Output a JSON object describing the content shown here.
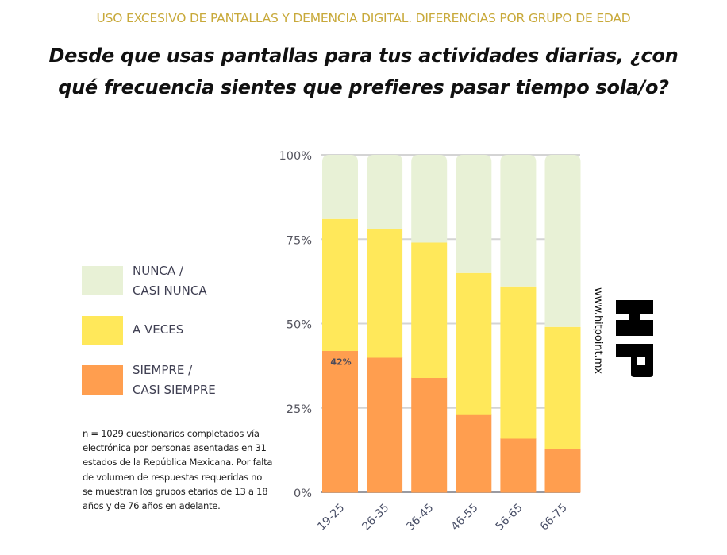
{
  "header": {
    "subtitle": "USO EXCESIVO DE PANTALLAS Y DEMENCIA DIGITAL. DIFERENCIAS POR GRUPO DE EDAD",
    "title_line1": "Desde que usas pantallas para tus actividades diarias, ¿con",
    "title_line2": "qué frecuencia sientes que prefieres pasar tiempo sola/o?"
  },
  "legend": {
    "items": [
      {
        "label": "NUNCA /\nCASI NUNCA",
        "color": "#E8F1D6"
      },
      {
        "label": "A VECES",
        "color": "#FFE85A"
      },
      {
        "label": "SIEMPRE /\nCASI SIEMPRE",
        "color": "#FF9E4F"
      }
    ]
  },
  "note": "n = 1029 cuestionarios completados vía electrónica por personas asentadas en 31 estados de la República Mexicana. Por falta de volumen de respuestas requeridas no se muestran los grupos etarios de 13 a 18 años y de 76 años en adelante.",
  "branding": {
    "url": "www.hitpoint.mx",
    "logo_icon": "hp-logo-icon"
  },
  "chart_data": {
    "type": "bar",
    "stacked": true,
    "percent": true,
    "title": "Desde que usas pantallas para tus actividades diarias, ¿con qué frecuencia sientes que prefieres pasar tiempo sola/o?",
    "xlabel": "",
    "ylabel": "",
    "categories": [
      "19-25",
      "26-35",
      "36-45",
      "46-55",
      "56-65",
      "66-75"
    ],
    "series": [
      {
        "name": "SIEMPRE / CASI SIEMPRE",
        "color": "#FF9E4F",
        "values": [
          42,
          40,
          34,
          23,
          16,
          13
        ]
      },
      {
        "name": "A VECES",
        "color": "#FFE85A",
        "values": [
          39,
          38,
          40,
          42,
          45,
          36
        ]
      },
      {
        "name": "NUNCA / CASI NUNCA",
        "color": "#E8F1D6",
        "values": [
          19,
          22,
          26,
          35,
          39,
          51
        ]
      }
    ],
    "ylim": [
      0,
      100
    ],
    "yticks": [
      "0%",
      "25%",
      "50%",
      "75%",
      "100%"
    ],
    "ytick_values": [
      0,
      25,
      50,
      75,
      100
    ],
    "grid": true,
    "legend_position": "left",
    "annotations": [
      {
        "category": "19-25",
        "series": "SIEMPRE / CASI SIEMPRE",
        "text": "42%"
      }
    ]
  }
}
